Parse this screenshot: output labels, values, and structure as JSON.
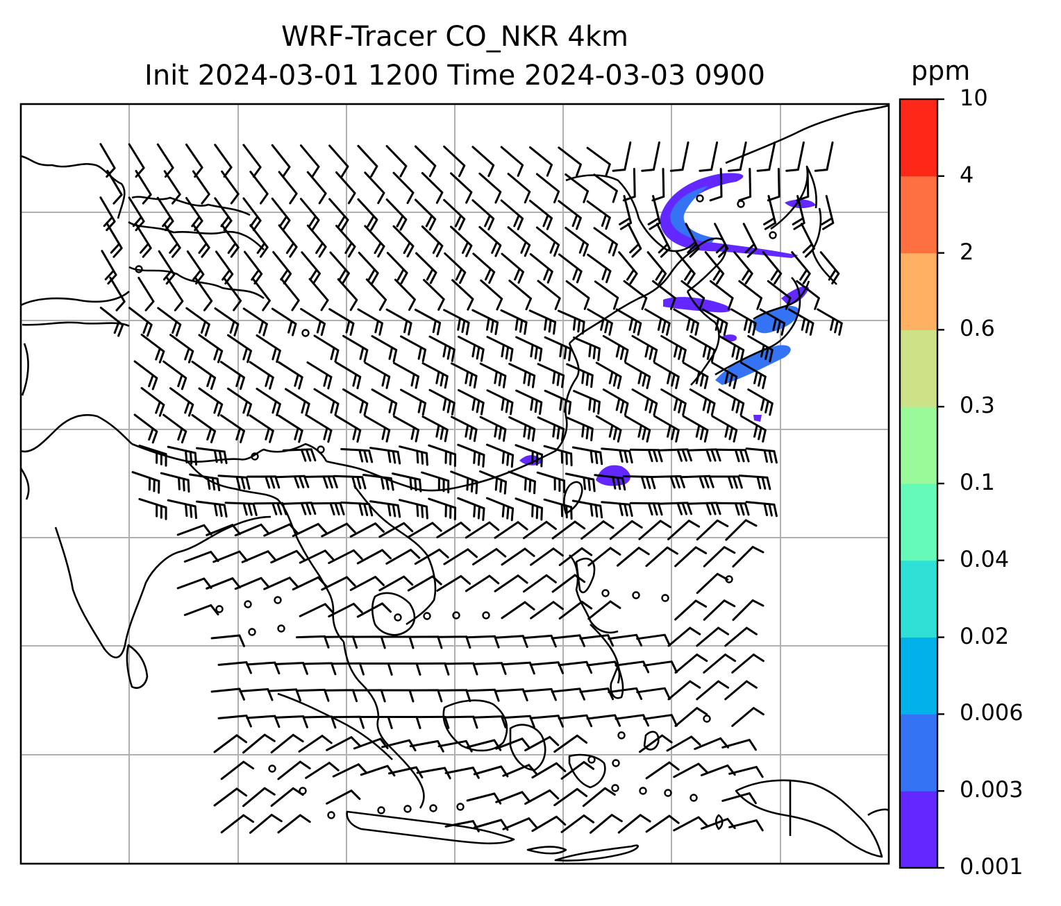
{
  "title": {
    "line1": "WRF-Tracer CO_NKR 4km",
    "line2": "Init 2024-03-01 1200 Time 2024-03-03 0900"
  },
  "colorbar": {
    "unit": "ppm",
    "levels": [
      "0.001",
      "0.003",
      "0.006",
      "0.02",
      "0.04",
      "0.1",
      "0.3",
      "0.6",
      "2",
      "4",
      "10"
    ],
    "colors": [
      "#6228ff",
      "#3473f4",
      "#00b1ea",
      "#2ee0d6",
      "#66fab8",
      "#9afa9a",
      "#cde186",
      "#ffb060",
      "#ff7040",
      "#ff2818"
    ]
  },
  "map": {
    "grid_lines": "on",
    "wind_barbs": "on",
    "tracer_fill_color": "#6228ff",
    "tracer_core_color": "#3473f4"
  }
}
